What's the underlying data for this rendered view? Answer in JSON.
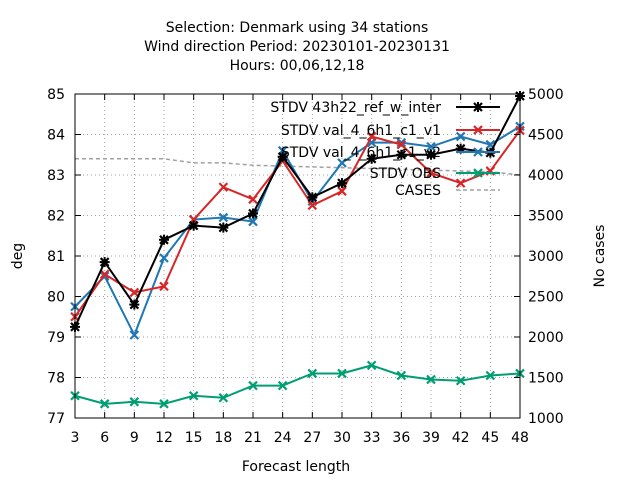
{
  "chart_data": {
    "type": "line",
    "title_lines": [
      "Selection: Denmark using    34 stations",
      "Wind direction   Period: 20230101-20230131",
      "Hours:  00,06,12,18"
    ],
    "xlabel": "Forecast length",
    "ylabel": "deg",
    "y2label": "No cases",
    "x": [
      3,
      6,
      9,
      12,
      15,
      18,
      21,
      24,
      27,
      30,
      33,
      36,
      39,
      42,
      45,
      48
    ],
    "xlim": [
      3,
      48
    ],
    "ylim": [
      77,
      85
    ],
    "y2lim": [
      1000,
      5000
    ],
    "xticks": [
      "3",
      "6",
      "9",
      "12",
      "15",
      "18",
      "21",
      "24",
      "27",
      "30",
      "33",
      "36",
      "39",
      "42",
      "45",
      "48"
    ],
    "yticks": [
      "77",
      "78",
      "79",
      "80",
      "81",
      "82",
      "83",
      "84",
      "85"
    ],
    "y2ticks": [
      "1000",
      "1500",
      "2000",
      "2500",
      "3000",
      "3500",
      "4000",
      "4500",
      "5000"
    ],
    "grid": true,
    "legend_position": "top-right",
    "series": [
      {
        "name": "STDV 43h22_ref_w_inter",
        "color": "#000000",
        "marker": "star",
        "axis": "left",
        "values": [
          79.25,
          80.85,
          79.8,
          81.4,
          81.75,
          81.7,
          82.05,
          83.45,
          82.45,
          82.8,
          83.4,
          83.5,
          83.5,
          83.65,
          83.55,
          84.95
        ]
      },
      {
        "name": "STDV val_4_6h1_c1_v1",
        "color": "#d62728",
        "marker": "x",
        "axis": "left",
        "values": [
          79.5,
          80.55,
          80.1,
          80.25,
          81.9,
          82.7,
          82.4,
          83.35,
          82.25,
          82.6,
          83.95,
          83.75,
          83.05,
          82.8,
          83.1,
          84.1
        ]
      },
      {
        "name": "STDV val_4_6h1_c1_v2",
        "color": "#1f77b4",
        "marker": "x",
        "axis": "left",
        "values": [
          79.75,
          80.5,
          79.05,
          80.95,
          81.9,
          81.95,
          81.85,
          83.6,
          82.35,
          83.3,
          83.8,
          83.8,
          83.7,
          83.95,
          83.75,
          84.2
        ]
      },
      {
        "name": "STDV OBS",
        "color": "#009e73",
        "marker": "x",
        "axis": "left",
        "values": [
          77.55,
          77.35,
          77.4,
          77.35,
          77.55,
          77.5,
          77.8,
          77.8,
          78.1,
          78.1,
          78.3,
          78.05,
          77.95,
          77.92,
          78.05,
          78.1
        ]
      },
      {
        "name": "CASES",
        "color": "#a0a0a0",
        "marker": "none",
        "dashed": true,
        "axis": "right",
        "values": [
          4200,
          4200,
          4200,
          4200,
          4150,
          4150,
          4120,
          4110,
          4100,
          4090,
          4080,
          4070,
          4060,
          4050,
          4040,
          4000
        ]
      }
    ]
  }
}
